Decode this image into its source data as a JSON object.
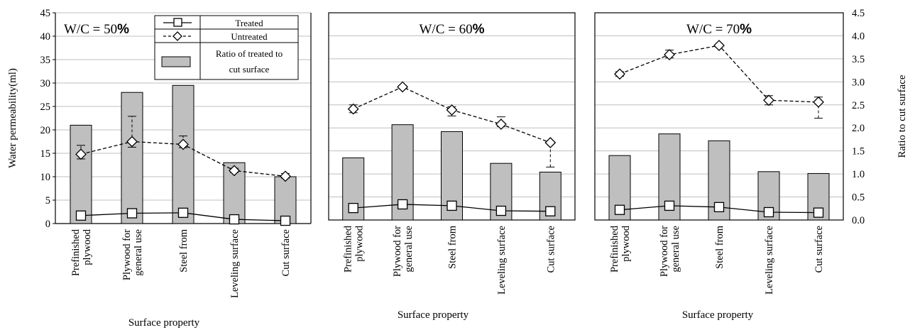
{
  "chart_data": [
    {
      "type": "bar",
      "title": "W/C = 50%",
      "title_main": "W/C = 50",
      "title_pct": "%",
      "categories": [
        "Prefinished plywood",
        "Plywood for general use",
        "Steel from",
        "Leveling surface",
        "Cut surface"
      ],
      "category_lines": [
        [
          "Prefinished",
          "plywood"
        ],
        [
          "Plywood for",
          "general use"
        ],
        [
          "Steel from"
        ],
        [
          "Leveling surface"
        ],
        [
          "Cut surface"
        ]
      ],
      "xlabel": "Surface property",
      "ylabel": "Water permeability(ml)",
      "ylim": [
        0,
        45
      ],
      "yticks": [
        "0",
        "5",
        "10",
        "15",
        "20",
        "25",
        "30",
        "35",
        "40",
        "45"
      ],
      "grid": true,
      "series": [
        {
          "name": "Ratio of treated to cut surface",
          "kind": "bar",
          "axis": "right",
          "values": [
            2.1,
            2.8,
            2.95,
            1.3,
            1.0
          ]
        },
        {
          "name": "Treated",
          "kind": "line",
          "marker": "square",
          "axis": "left",
          "values": [
            1.7,
            2.2,
            2.3,
            0.9,
            0.6
          ]
        },
        {
          "name": "Untreated",
          "kind": "line",
          "marker": "diamond",
          "axis": "left",
          "values": [
            14.8,
            17.5,
            16.9,
            11.3,
            10.1
          ],
          "err_high": [
            16.7,
            22.9,
            18.7,
            11.8,
            10.7
          ],
          "err_low": [
            13.8,
            16.3,
            16.2,
            10.9,
            9.7
          ]
        }
      ],
      "legend": {
        "placement": "top-right",
        "entries": [
          "Treated",
          "Untreated",
          "Ratio of treated to",
          "cut surface"
        ]
      }
    },
    {
      "type": "bar",
      "title": "W/C = 60%",
      "title_main": "W/C = 60",
      "title_pct": "%",
      "categories": [
        "Prefinished plywood",
        "Plywood for general use",
        "Steel from",
        "Leveling surface",
        "Cut surface"
      ],
      "category_lines": [
        [
          "Prefinished",
          "plywood"
        ],
        [
          "Plywood for",
          "general use"
        ],
        [
          "Steel from"
        ],
        [
          "Leveling surface"
        ],
        [
          "Cut surface"
        ]
      ],
      "xlabel": "Surface property",
      "ylim": [
        0,
        45
      ],
      "grid": true,
      "series": [
        {
          "name": "Ratio of treated to cut surface",
          "kind": "bar",
          "axis": "right",
          "values": [
            1.35,
            2.07,
            1.92,
            1.23,
            1.04
          ]
        },
        {
          "name": "Treated",
          "kind": "line",
          "marker": "square",
          "axis": "left",
          "values": [
            2.6,
            3.4,
            3.1,
            2.0,
            1.9
          ]
        },
        {
          "name": "Untreated",
          "kind": "line",
          "marker": "diamond",
          "axis": "left",
          "values": [
            24.1,
            28.9,
            23.9,
            20.8,
            16.8
          ],
          "err_high": [
            25.0,
            29.2,
            24.6,
            22.4,
            16.8
          ],
          "err_low": [
            23.3,
            28.6,
            22.6,
            20.3,
            11.5
          ]
        }
      ]
    },
    {
      "type": "bar",
      "title": "W/C = 70%",
      "title_main": "W/C = 70",
      "title_pct": "%",
      "categories": [
        "Prefinished plywood",
        "Plywood for general use",
        "Steel from",
        "Leveling surface",
        "Cut surface"
      ],
      "category_lines": [
        [
          "Prefinished",
          "plywood"
        ],
        [
          "Plywood for",
          "general use"
        ],
        [
          "Steel from"
        ],
        [
          "Leveling surface"
        ],
        [
          "Cut surface"
        ]
      ],
      "xlabel": "Surface property",
      "y2label": "Ratio to cut surface",
      "y2lim": [
        0,
        4.5
      ],
      "y2ticks": [
        "0.0",
        "0.5",
        "1.0",
        "1.5",
        "2.0",
        "2.5",
        "3.0",
        "3.5",
        "4.0",
        "4.5"
      ],
      "grid": true,
      "series": [
        {
          "name": "Ratio of treated to cut surface",
          "kind": "bar",
          "axis": "right",
          "values": [
            1.4,
            1.87,
            1.72,
            1.05,
            1.01
          ]
        },
        {
          "name": "Treated",
          "kind": "line",
          "marker": "square",
          "axis": "left",
          "values": [
            2.2,
            3.1,
            2.8,
            1.7,
            1.6
          ]
        },
        {
          "name": "Untreated",
          "kind": "line",
          "marker": "diamond",
          "axis": "left",
          "values": [
            31.7,
            35.9,
            37.9,
            26.0,
            25.6
          ],
          "err_high": [
            32.2,
            36.9,
            38.2,
            27.0,
            26.7
          ],
          "err_low": [
            31.2,
            35.2,
            37.6,
            25.0,
            22.1
          ]
        }
      ]
    }
  ],
  "colors": {
    "bar_fill": "#bfbfbf",
    "bar_stroke": "#000000",
    "grid": "#bfbfbf",
    "line": "#000000",
    "marker_fill": "#ffffff"
  }
}
